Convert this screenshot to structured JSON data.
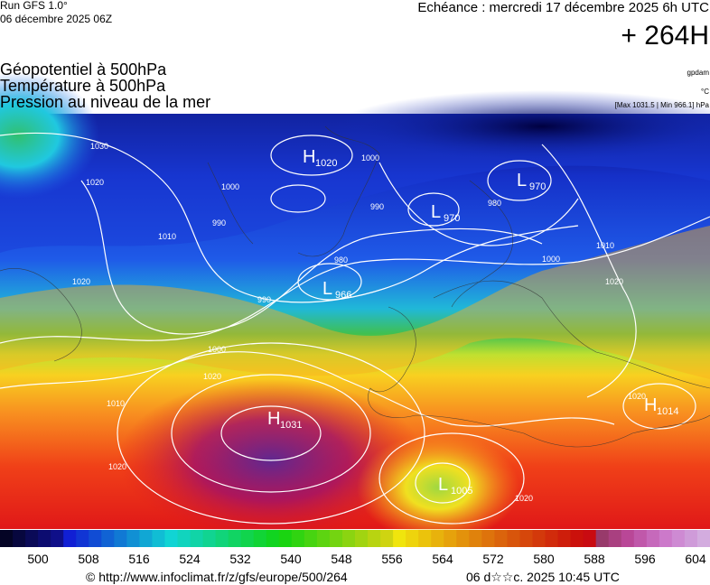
{
  "header": {
    "run": "Run GFS 1.0°",
    "run_date": "06 décembre 2025 06Z",
    "valid": "Echéance : mercredi 17 décembre 2025 6h UTC",
    "lead": "+ 264H",
    "fields": [
      "Géopotentiel à 500hPa",
      "Température à 500hPa",
      "Pression au niveau de la mer"
    ],
    "units": [
      "gpdam",
      "°C",
      "[Max 1031.5 | Min 966.1] hPa"
    ]
  },
  "pressure_centers": [
    {
      "type": "H",
      "value": "1020"
    },
    {
      "type": "L",
      "value": "970"
    },
    {
      "type": "L",
      "value": "970"
    },
    {
      "type": "L",
      "value": "966"
    },
    {
      "type": "H",
      "value": "1031"
    },
    {
      "type": "H",
      "value": "1014"
    },
    {
      "type": "L",
      "value": "1005"
    }
  ],
  "contour_labels": [
    "1030",
    "1020",
    "1010",
    "1000",
    "1000",
    "990",
    "990",
    "980",
    "980",
    "990",
    "1000",
    "1010",
    "1020",
    "1010",
    "1020",
    "1000",
    "1020",
    "1020",
    "1020",
    "1020"
  ],
  "colorbar": {
    "ticks": [
      500,
      508,
      516,
      524,
      532,
      540,
      548,
      556,
      564,
      572,
      580,
      588,
      596,
      604
    ]
  },
  "footer": {
    "source": "© http://www.infoclimat.fr/z/gfs/europe/500/264",
    "timestamp": "06 d☆☆c. 2025 10:45 UTC"
  }
}
